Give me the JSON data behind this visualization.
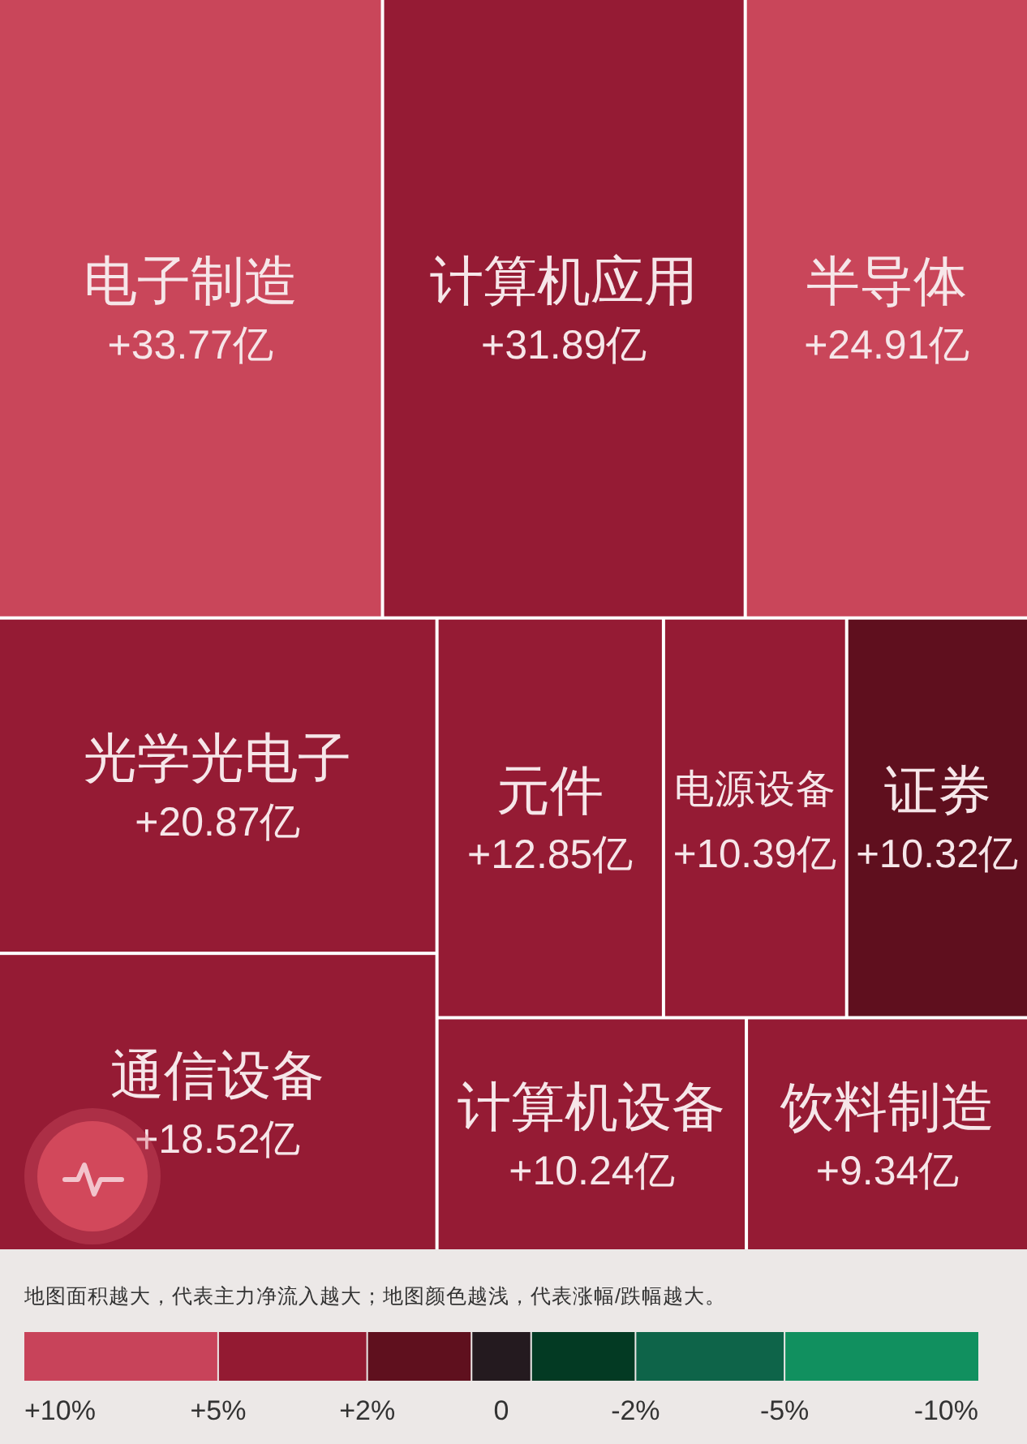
{
  "chart_data": [
    {
      "type": "other",
      "categories": [
        "电子制造",
        "计算机应用",
        "半导体",
        "光学光电子",
        "通信设备",
        "元件",
        "电源设备",
        "证券",
        "计算机设备",
        "饮料制造"
      ],
      "values": [
        33.77,
        31.89,
        24.91,
        20.87,
        18.52,
        12.85,
        10.39,
        10.32,
        10.24,
        9.34
      ],
      "value_labels": [
        "+33.77亿",
        "+31.89亿",
        "+24.91亿",
        "+20.87亿",
        "+18.52亿",
        "+12.85亿",
        "+10.39亿",
        "+10.32亿",
        "+10.24亿",
        "+9.34亿"
      ],
      "colors": [
        "#c9465a",
        "#951b34",
        "#c9465a",
        "#951b34",
        "#951b34",
        "#951b34",
        "#951b34",
        "#5f0f1e",
        "#951b34",
        "#951b34"
      ]
    },
    {
      "type": "other",
      "annotations": [
        "地图面积越大，代表主力净流入越大；地图颜色越浅，代表涨幅/跌幅越大。"
      ],
      "categories": [
        "+10%",
        "+5%",
        "+2%",
        "0",
        "-2%",
        "-5%",
        "-10%"
      ],
      "colors": [
        "#c8435a",
        "#931a32",
        "#5f101e",
        "#241a1f",
        "#033a23",
        "#0e6449",
        "#11905f"
      ]
    }
  ]
}
